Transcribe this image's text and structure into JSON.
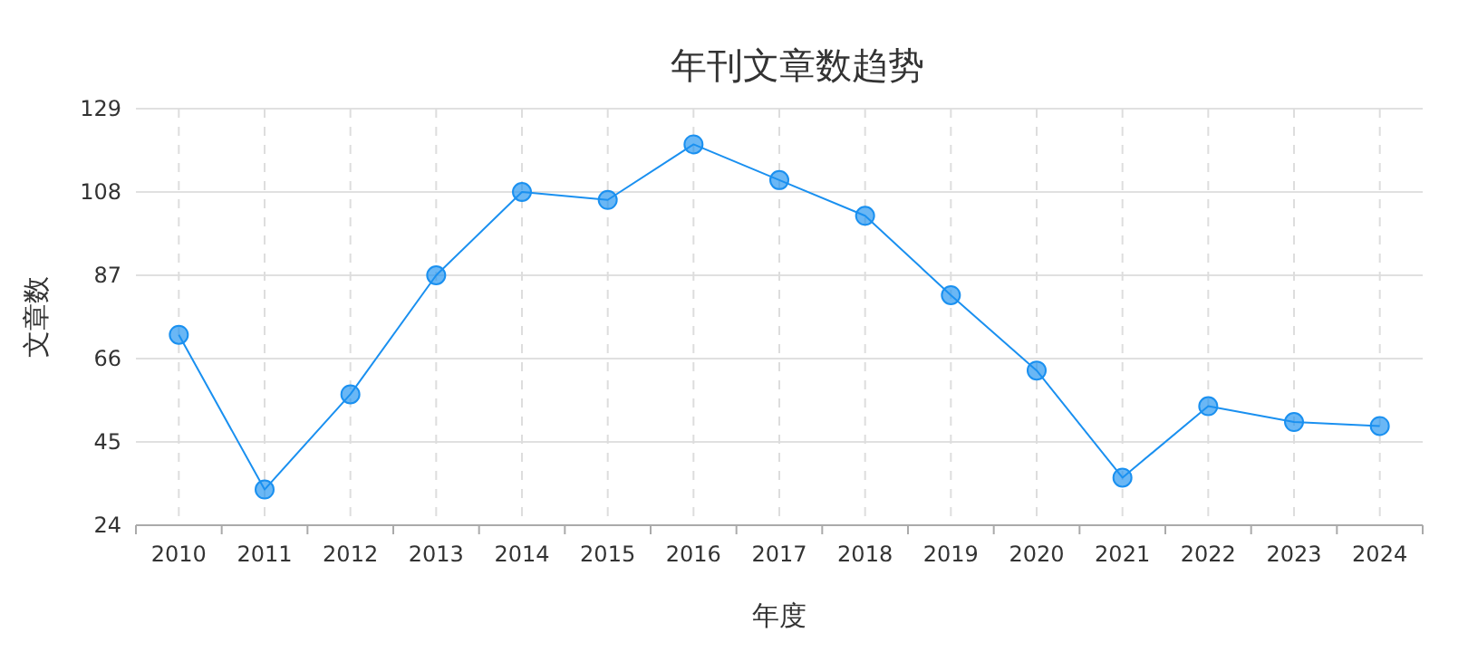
{
  "chart_data": {
    "type": "line",
    "title": "年刊文章数趋势",
    "xlabel": "年度",
    "ylabel": "文章数",
    "categories": [
      "2010",
      "2011",
      "2012",
      "2013",
      "2014",
      "2015",
      "2016",
      "2017",
      "2018",
      "2019",
      "2020",
      "2021",
      "2022",
      "2023",
      "2024"
    ],
    "series": [
      {
        "color": "#1a90f0",
        "values": [
          72,
          33,
          57,
          87,
          108,
          106,
          120,
          111,
          102,
          82,
          63,
          36,
          54,
          50,
          49
        ]
      }
    ],
    "ylim": [
      24,
      129
    ],
    "yticks": [
      24,
      45,
      66,
      87,
      108,
      129
    ],
    "grid": true,
    "marker": "circle",
    "line_style": "solid"
  }
}
